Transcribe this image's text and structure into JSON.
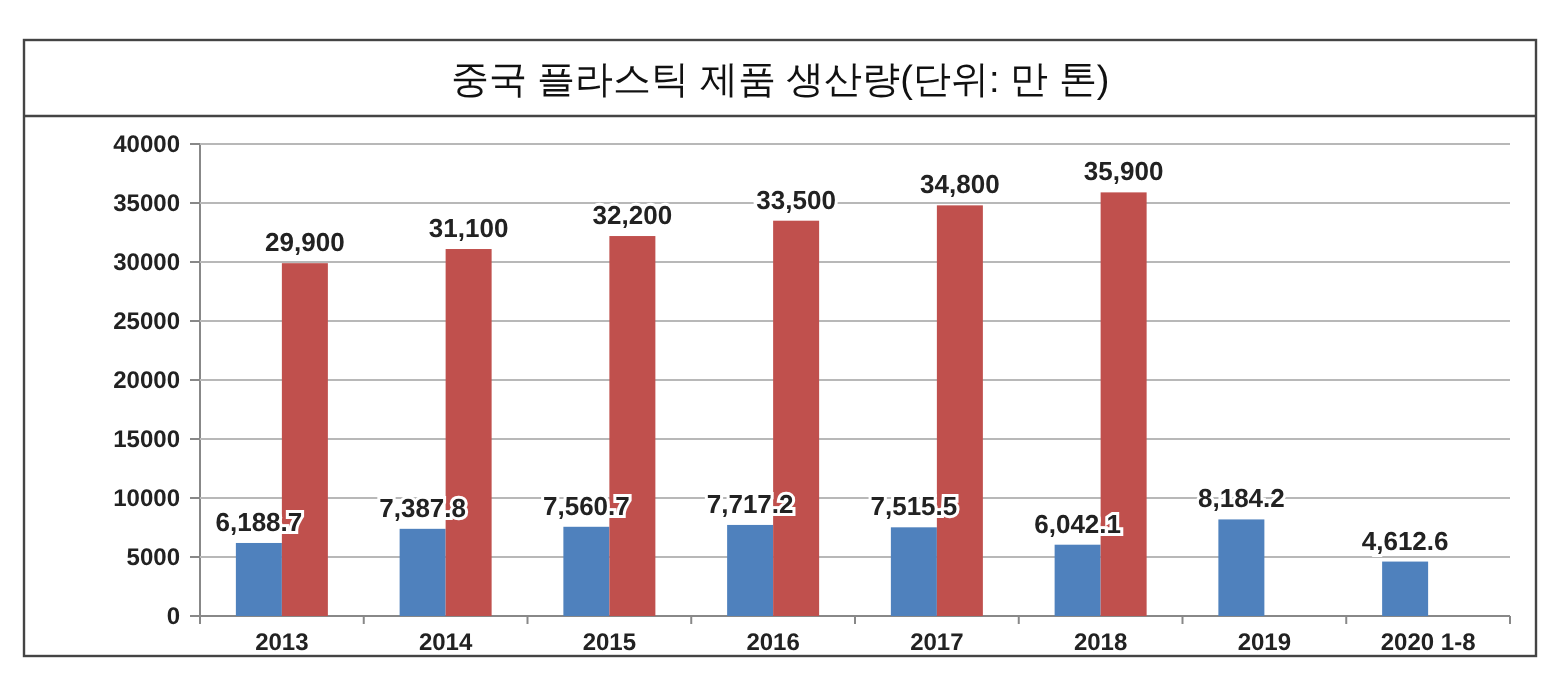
{
  "chart_data": {
    "type": "bar",
    "title": "중국 플라스틱 제품 생산량(단위: 만 톤)",
    "categories": [
      "2013",
      "2014",
      "2015",
      "2016",
      "2017",
      "2018",
      "2019",
      "2020 1-8"
    ],
    "series": [
      {
        "color": "#4f81bd",
        "values": [
          6188.7,
          7387.8,
          7560.7,
          7717.2,
          7515.5,
          6042.1,
          8184.2,
          4612.6
        ],
        "value_labels": [
          "6,188.7",
          "7,387.8",
          "7,560.7",
          "7,717.2",
          "7,515.5",
          "6,042.1",
          "8,184.2",
          "4,612.6"
        ]
      },
      {
        "color": "#c0504d",
        "values": [
          29900,
          31100,
          32200,
          33500,
          34800,
          35900,
          null,
          null
        ],
        "value_labels": [
          "29,900",
          "31,100",
          "32,200",
          "33,500",
          "34,800",
          "35,900",
          null,
          null
        ]
      }
    ],
    "ylim": [
      0,
      40000
    ],
    "yticks": [
      0,
      5000,
      10000,
      15000,
      20000,
      25000,
      30000,
      35000,
      40000
    ],
    "grid": "y"
  }
}
